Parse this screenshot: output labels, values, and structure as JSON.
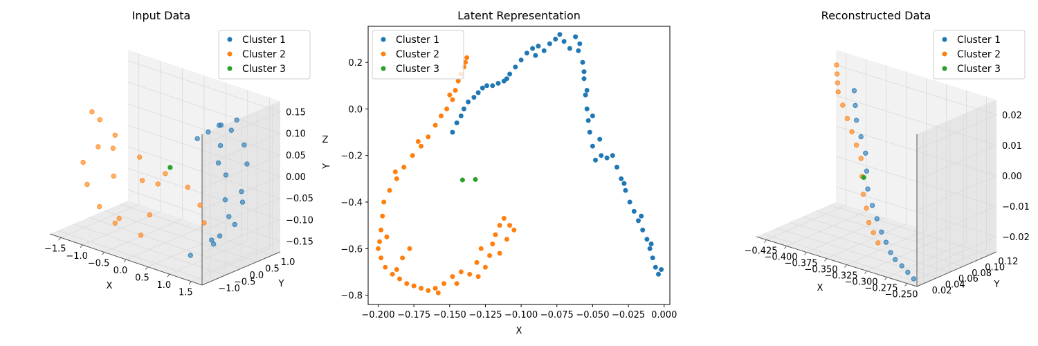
{
  "colors": {
    "cluster1": "#1f77b4",
    "cluster2": "#ff7f0e",
    "cluster3": "#2ca02c",
    "pane": "#f2f2f2",
    "grid": "#d9d9d9"
  },
  "chart_data": [
    {
      "type": "scatter",
      "projection": "3d",
      "title": "Input Data",
      "xlabel": "X",
      "ylabel": "Y",
      "zlabel": "Z",
      "xlim": [
        -1.6,
        1.6
      ],
      "ylim": [
        -1.1,
        1.2
      ],
      "zlim": [
        -0.17,
        0.18
      ],
      "x_ticks": [
        "−1.5",
        "−1.0",
        "−0.5",
        "0.0",
        "0.5",
        "1.0",
        "1.5"
      ],
      "y_ticks": [
        "−1.0",
        "−0.5",
        "0.0",
        "0.5",
        "1.0"
      ],
      "z_ticks": [
        "−0.15",
        "−0.10",
        "−0.05",
        "0.00",
        "0.05",
        "0.10",
        "0.15"
      ],
      "legend": {
        "placement": "top-right",
        "entries": [
          "Cluster 1",
          "Cluster 2",
          "Cluster 3"
        ]
      },
      "series": [
        {
          "name": "Cluster 1",
          "points": [
            [
              0.9,
              0.9,
              0.12
            ],
            [
              1.2,
              0.7,
              0.08
            ],
            [
              1.4,
              0.5,
              0.05
            ],
            [
              1.5,
              0.2,
              0.0
            ],
            [
              1.45,
              -0.1,
              -0.05
            ],
            [
              1.3,
              -0.4,
              -0.1
            ],
            [
              1.0,
              -0.6,
              -0.14
            ],
            [
              0.6,
              0.8,
              0.1
            ],
            [
              0.3,
              0.9,
              0.07
            ],
            [
              0.0,
              1.0,
              0.04
            ],
            [
              1.1,
              0.3,
              0.02
            ],
            [
              1.3,
              0.0,
              -0.02
            ],
            [
              0.8,
              0.5,
              0.03
            ],
            [
              1.5,
              0.0,
              -0.07
            ],
            [
              1.45,
              0.3,
              -0.03
            ],
            [
              0.5,
              1.0,
              0.09
            ],
            [
              1.2,
              -0.2,
              -0.12
            ],
            [
              0.7,
              0.7,
              0.06
            ],
            [
              1.4,
              -0.3,
              -0.09
            ],
            [
              1.0,
              0.6,
              0.11
            ]
          ]
        },
        {
          "name": "Cluster 2",
          "points": [
            [
              -1.5,
              0.0,
              0.08
            ],
            [
              -1.3,
              0.4,
              0.02
            ],
            [
              -1.0,
              0.7,
              -0.03
            ],
            [
              -0.6,
              0.9,
              -0.06
            ],
            [
              -0.2,
              1.0,
              -0.08
            ],
            [
              0.2,
              0.8,
              -0.1
            ],
            [
              0.5,
              0.5,
              -0.12
            ],
            [
              -1.4,
              -0.4,
              -0.02
            ],
            [
              -1.1,
              -0.7,
              -0.05
            ],
            [
              -0.7,
              -0.9,
              -0.08
            ],
            [
              -0.3,
              -1.0,
              -0.1
            ],
            [
              0.1,
              -0.8,
              -0.12
            ],
            [
              -1.2,
              0.2,
              0.0
            ],
            [
              -0.9,
              -0.2,
              -0.04
            ],
            [
              -0.4,
              0.4,
              -0.06
            ],
            [
              0.0,
              -0.4,
              -0.09
            ],
            [
              -1.55,
              0.3,
              0.05
            ],
            [
              -0.8,
              0.5,
              -0.07
            ],
            [
              -0.5,
              -0.6,
              -0.11
            ],
            [
              -1.3,
              -0.1,
              0.01
            ]
          ]
        },
        {
          "name": "Cluster 3",
          "points": [
            [
              0.0,
              0.2,
              0.0
            ]
          ]
        }
      ]
    },
    {
      "type": "scatter",
      "title": "Latent Representation",
      "xlabel": "X",
      "ylabel": "",
      "xlim": [
        -0.207,
        0.004
      ],
      "ylim": [
        -0.84,
        0.355
      ],
      "x_ticks": [
        -0.2,
        -0.175,
        -0.15,
        -0.125,
        -0.1,
        -0.075,
        -0.05,
        -0.025,
        0.0
      ],
      "x_tick_labels": [
        "−0.200",
        "−0.175",
        "−0.150",
        "−0.125",
        "−0.100",
        "−0.075",
        "−0.050",
        "−0.025",
        "0.000"
      ],
      "y_ticks": [
        0.2,
        0.0,
        -0.2,
        -0.4,
        -0.6,
        -0.8
      ],
      "y_tick_labels": [
        "0.2",
        "0.0",
        "−0.2",
        "−0.4",
        "−0.6",
        "−0.8"
      ],
      "grid": false,
      "legend": {
        "placement": "top-left",
        "entries": [
          "Cluster 1",
          "Cluster 2",
          "Cluster 3"
        ]
      },
      "series": [
        {
          "name": "Cluster 1",
          "points": [
            [
              -0.148,
              -0.1
            ],
            [
              -0.145,
              -0.06
            ],
            [
              -0.142,
              -0.03
            ],
            [
              -0.14,
              0.0
            ],
            [
              -0.137,
              0.03
            ],
            [
              -0.133,
              0.05
            ],
            [
              -0.13,
              0.07
            ],
            [
              -0.127,
              0.09
            ],
            [
              -0.124,
              0.1
            ],
            [
              -0.12,
              0.1
            ],
            [
              -0.116,
              0.11
            ],
            [
              -0.112,
              0.12
            ],
            [
              -0.108,
              0.15
            ],
            [
              -0.104,
              0.18
            ],
            [
              -0.1,
              0.21
            ],
            [
              -0.096,
              0.24
            ],
            [
              -0.092,
              0.26
            ],
            [
              -0.088,
              0.27
            ],
            [
              -0.084,
              0.25
            ],
            [
              -0.08,
              0.28
            ],
            [
              -0.076,
              0.3
            ],
            [
              -0.073,
              0.32
            ],
            [
              -0.07,
              0.29
            ],
            [
              -0.066,
              0.26
            ],
            [
              -0.062,
              0.31
            ],
            [
              -0.059,
              0.28
            ],
            [
              -0.057,
              0.2
            ],
            [
              -0.056,
              0.13
            ],
            [
              -0.055,
              0.06
            ],
            [
              -0.054,
              0.0
            ],
            [
              -0.053,
              -0.05
            ],
            [
              -0.052,
              -0.1
            ],
            [
              -0.05,
              -0.16
            ],
            [
              -0.048,
              -0.22
            ],
            [
              -0.044,
              -0.2
            ],
            [
              -0.04,
              -0.21
            ],
            [
              -0.036,
              -0.2
            ],
            [
              -0.033,
              -0.25
            ],
            [
              -0.03,
              -0.3
            ],
            [
              -0.027,
              -0.35
            ],
            [
              -0.024,
              -0.4
            ],
            [
              -0.021,
              -0.44
            ],
            [
              -0.018,
              -0.48
            ],
            [
              -0.015,
              -0.52
            ],
            [
              -0.012,
              -0.56
            ],
            [
              -0.01,
              -0.6
            ],
            [
              -0.008,
              -0.64
            ],
            [
              -0.006,
              -0.68
            ],
            [
              -0.004,
              -0.71
            ],
            [
              -0.002,
              -0.69
            ],
            [
              -0.11,
              0.13
            ],
            [
              -0.09,
              0.23
            ],
            [
              -0.06,
              0.25
            ],
            [
              -0.056,
              0.16
            ],
            [
              -0.054,
              0.08
            ],
            [
              -0.05,
              -0.03
            ],
            [
              -0.045,
              -0.13
            ],
            [
              -0.028,
              -0.32
            ],
            [
              -0.016,
              -0.46
            ],
            [
              -0.009,
              -0.58
            ]
          ]
        },
        {
          "name": "Cluster 2",
          "points": [
            [
              -0.138,
              0.22
            ],
            [
              -0.14,
              0.18
            ],
            [
              -0.142,
              0.15
            ],
            [
              -0.144,
              0.12
            ],
            [
              -0.146,
              0.08
            ],
            [
              -0.148,
              0.04
            ],
            [
              -0.152,
              0.0
            ],
            [
              -0.156,
              -0.03
            ],
            [
              -0.16,
              -0.07
            ],
            [
              -0.165,
              -0.12
            ],
            [
              -0.17,
              -0.16
            ],
            [
              -0.176,
              -0.2
            ],
            [
              -0.182,
              -0.25
            ],
            [
              -0.187,
              -0.3
            ],
            [
              -0.192,
              -0.35
            ],
            [
              -0.196,
              -0.4
            ],
            [
              -0.197,
              -0.46
            ],
            [
              -0.198,
              -0.52
            ],
            [
              -0.199,
              -0.57
            ],
            [
              -0.2,
              -0.6
            ],
            [
              -0.198,
              -0.64
            ],
            [
              -0.195,
              -0.68
            ],
            [
              -0.19,
              -0.71
            ],
            [
              -0.185,
              -0.73
            ],
            [
              -0.18,
              -0.75
            ],
            [
              -0.175,
              -0.76
            ],
            [
              -0.17,
              -0.77
            ],
            [
              -0.165,
              -0.78
            ],
            [
              -0.16,
              -0.77
            ],
            [
              -0.154,
              -0.75
            ],
            [
              -0.148,
              -0.72
            ],
            [
              -0.142,
              -0.7
            ],
            [
              -0.136,
              -0.71
            ],
            [
              -0.13,
              -0.72
            ],
            [
              -0.125,
              -0.68
            ],
            [
              -0.122,
              -0.63
            ],
            [
              -0.12,
              -0.58
            ],
            [
              -0.118,
              -0.54
            ],
            [
              -0.115,
              -0.5
            ],
            [
              -0.112,
              -0.47
            ],
            [
              -0.108,
              -0.5
            ],
            [
              -0.105,
              -0.52
            ],
            [
              -0.128,
              -0.6
            ],
            [
              -0.131,
              -0.66
            ],
            [
              -0.145,
              -0.75
            ],
            [
              -0.158,
              -0.79
            ],
            [
              -0.178,
              -0.6
            ],
            [
              -0.183,
              -0.64
            ],
            [
              -0.188,
              -0.27
            ],
            [
              -0.172,
              -0.14
            ],
            [
              -0.15,
              0.06
            ],
            [
              -0.139,
              0.2
            ],
            [
              -0.194,
              -0.55
            ],
            [
              -0.187,
              -0.69
            ],
            [
              -0.115,
              -0.62
            ],
            [
              -0.11,
              -0.56
            ]
          ]
        },
        {
          "name": "Cluster 3",
          "points": [
            [
              -0.141,
              -0.305
            ],
            [
              -0.132,
              -0.303
            ]
          ]
        }
      ]
    },
    {
      "type": "scatter",
      "projection": "3d",
      "title": "Reconstructed Data",
      "xlabel": "X",
      "ylabel": "Y",
      "zlabel": "",
      "xlim": [
        -0.44,
        -0.24
      ],
      "ylim": [
        0.015,
        0.13
      ],
      "zlim": [
        -0.023,
        0.026
      ],
      "x_ticks": [
        "−0.425",
        "−0.400",
        "−0.375",
        "−0.350",
        "−0.325",
        "−0.300",
        "−0.275",
        "−0.250"
      ],
      "y_ticks": [
        "0.02",
        "0.04",
        "0.06",
        "0.08",
        "0.10",
        "0.12"
      ],
      "z_ticks": [
        "−0.02",
        "−0.01",
        "0.00",
        "0.01",
        "0.02"
      ],
      "legend": {
        "placement": "top-right",
        "entries": [
          "Cluster 1",
          "Cluster 2",
          "Cluster 3"
        ]
      },
      "series": [
        {
          "name": "Cluster 1",
          "points": [
            [
              -0.4,
              0.11,
              0.018
            ],
            [
              -0.39,
              0.1,
              0.015
            ],
            [
              -0.38,
              0.09,
              0.012
            ],
            [
              -0.37,
              0.085,
              0.008
            ],
            [
              -0.36,
              0.08,
              0.004
            ],
            [
              -0.35,
              0.07,
              0.0
            ],
            [
              -0.34,
              0.06,
              -0.004
            ],
            [
              -0.33,
              0.055,
              -0.008
            ],
            [
              -0.32,
              0.05,
              -0.011
            ],
            [
              -0.31,
              0.045,
              -0.014
            ],
            [
              -0.3,
              0.04,
              -0.016
            ],
            [
              -0.29,
              0.035,
              -0.018
            ],
            [
              -0.28,
              0.03,
              -0.019
            ],
            [
              -0.27,
              0.028,
              -0.02
            ],
            [
              -0.26,
              0.025,
              -0.021
            ],
            [
              -0.25,
              0.022,
              -0.022
            ]
          ]
        },
        {
          "name": "Cluster 2",
          "points": [
            [
              -0.435,
              0.125,
              0.022
            ],
            [
              -0.43,
              0.12,
              0.02
            ],
            [
              -0.425,
              0.115,
              0.018
            ],
            [
              -0.42,
              0.11,
              0.016
            ],
            [
              -0.41,
              0.105,
              0.013
            ],
            [
              -0.4,
              0.1,
              0.01
            ],
            [
              -0.39,
              0.095,
              0.007
            ],
            [
              -0.38,
              0.09,
              0.004
            ],
            [
              -0.37,
              0.085,
              0.001
            ],
            [
              -0.36,
              0.075,
              -0.003
            ],
            [
              -0.35,
              0.065,
              -0.007
            ],
            [
              -0.34,
              0.058,
              -0.01
            ],
            [
              -0.33,
              0.05,
              -0.013
            ],
            [
              -0.32,
              0.045,
              -0.015
            ],
            [
              -0.31,
              0.04,
              -0.017
            ]
          ]
        },
        {
          "name": "Cluster 3",
          "points": [
            [
              -0.352,
              0.068,
              -0.002
            ]
          ]
        }
      ]
    }
  ]
}
